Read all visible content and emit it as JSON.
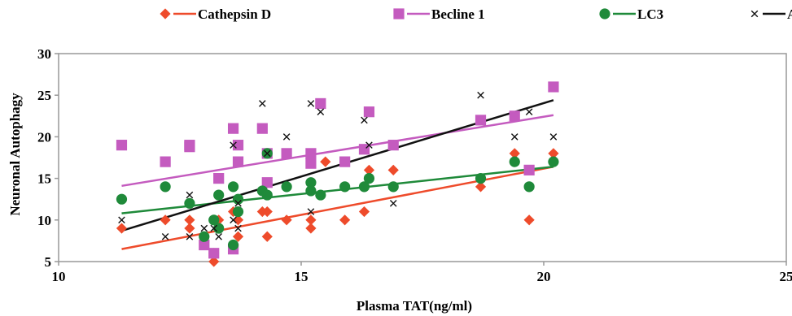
{
  "chart_data": {
    "type": "scatter",
    "title": "",
    "xlabel": "Plasma TAT(ng/ml)",
    "ylabel": "Neuronal Autophagy",
    "xlim": [
      10,
      25
    ],
    "ylim": [
      5,
      30
    ],
    "xticks": [
      "10",
      "15",
      "20",
      "25"
    ],
    "yticks": [
      "5",
      "10",
      "15",
      "20",
      "25",
      "30"
    ],
    "grid": false,
    "legend_position": "top",
    "series": [
      {
        "name": "Cathepsin D",
        "color": "#ee4b2b",
        "marker": "diamond",
        "trend": [
          [
            11.3,
            6.5
          ],
          [
            20.2,
            16.4
          ]
        ],
        "points": [
          [
            11.3,
            9
          ],
          [
            12.2,
            10
          ],
          [
            12.7,
            10
          ],
          [
            12.7,
            9
          ],
          [
            13.0,
            8
          ],
          [
            13.2,
            6
          ],
          [
            13.2,
            5
          ],
          [
            13.3,
            10
          ],
          [
            13.3,
            9
          ],
          [
            13.6,
            7
          ],
          [
            13.6,
            11
          ],
          [
            13.7,
            10
          ],
          [
            13.7,
            8
          ],
          [
            14.2,
            11
          ],
          [
            14.3,
            11
          ],
          [
            14.3,
            8
          ],
          [
            14.7,
            10
          ],
          [
            15.2,
            9
          ],
          [
            15.2,
            10
          ],
          [
            15.5,
            17
          ],
          [
            15.9,
            10
          ],
          [
            16.3,
            11
          ],
          [
            16.4,
            16
          ],
          [
            16.9,
            16
          ],
          [
            18.7,
            14
          ],
          [
            19.4,
            18
          ],
          [
            19.7,
            10
          ],
          [
            20.2,
            18
          ]
        ]
      },
      {
        "name": "Becline 1",
        "color": "#c45bbf",
        "marker": "square",
        "trend": [
          [
            11.3,
            14.1
          ],
          [
            20.2,
            22.6
          ]
        ],
        "points": [
          [
            11.3,
            19
          ],
          [
            12.2,
            17
          ],
          [
            12.7,
            18.8
          ],
          [
            12.7,
            19
          ],
          [
            13.0,
            7
          ],
          [
            13.2,
            6
          ],
          [
            13.3,
            15
          ],
          [
            13.6,
            21
          ],
          [
            13.6,
            6.5
          ],
          [
            13.7,
            19
          ],
          [
            13.7,
            17
          ],
          [
            14.2,
            21
          ],
          [
            14.3,
            14.5
          ],
          [
            14.3,
            18
          ],
          [
            14.7,
            18
          ],
          [
            15.2,
            18
          ],
          [
            15.2,
            16.8
          ],
          [
            15.4,
            24
          ],
          [
            15.9,
            17
          ],
          [
            16.3,
            18.5
          ],
          [
            16.4,
            23
          ],
          [
            16.9,
            19
          ],
          [
            18.7,
            22
          ],
          [
            19.4,
            22.5
          ],
          [
            19.7,
            16
          ],
          [
            20.2,
            26
          ]
        ]
      },
      {
        "name": "LC3",
        "color": "#1f8a3a",
        "marker": "circle",
        "trend": [
          [
            11.3,
            10.8
          ],
          [
            20.2,
            16.4
          ]
        ],
        "points": [
          [
            11.3,
            12.5
          ],
          [
            12.2,
            14
          ],
          [
            12.7,
            12
          ],
          [
            13.0,
            8
          ],
          [
            13.2,
            10
          ],
          [
            13.3,
            13
          ],
          [
            13.3,
            9
          ],
          [
            13.6,
            14
          ],
          [
            13.6,
            7
          ],
          [
            13.7,
            12.5
          ],
          [
            13.7,
            11
          ],
          [
            14.2,
            13.5
          ],
          [
            14.3,
            13
          ],
          [
            14.3,
            18
          ],
          [
            14.7,
            14
          ],
          [
            15.2,
            14.5
          ],
          [
            15.2,
            13.5
          ],
          [
            15.4,
            13
          ],
          [
            15.9,
            14
          ],
          [
            16.3,
            14
          ],
          [
            16.4,
            15
          ],
          [
            16.9,
            14
          ],
          [
            18.7,
            15
          ],
          [
            19.4,
            17
          ],
          [
            19.7,
            14
          ],
          [
            20.2,
            17
          ]
        ]
      },
      {
        "name": "AVs",
        "color": "#111111",
        "marker": "x",
        "trend": [
          [
            11.3,
            8.7
          ],
          [
            20.2,
            24.4
          ]
        ],
        "points": [
          [
            11.3,
            10
          ],
          [
            12.2,
            8
          ],
          [
            12.7,
            13
          ],
          [
            12.7,
            8
          ],
          [
            13.0,
            9
          ],
          [
            13.2,
            9
          ],
          [
            13.3,
            8
          ],
          [
            13.6,
            10
          ],
          [
            13.6,
            19
          ],
          [
            13.7,
            9
          ],
          [
            13.7,
            12
          ],
          [
            14.2,
            24
          ],
          [
            14.3,
            18
          ],
          [
            14.7,
            20
          ],
          [
            15.2,
            24
          ],
          [
            15.2,
            11
          ],
          [
            15.4,
            23
          ],
          [
            16.3,
            22
          ],
          [
            16.4,
            19
          ],
          [
            16.9,
            12
          ],
          [
            18.7,
            25
          ],
          [
            19.4,
            20
          ],
          [
            19.7,
            23
          ],
          [
            20.2,
            20
          ]
        ]
      }
    ]
  }
}
